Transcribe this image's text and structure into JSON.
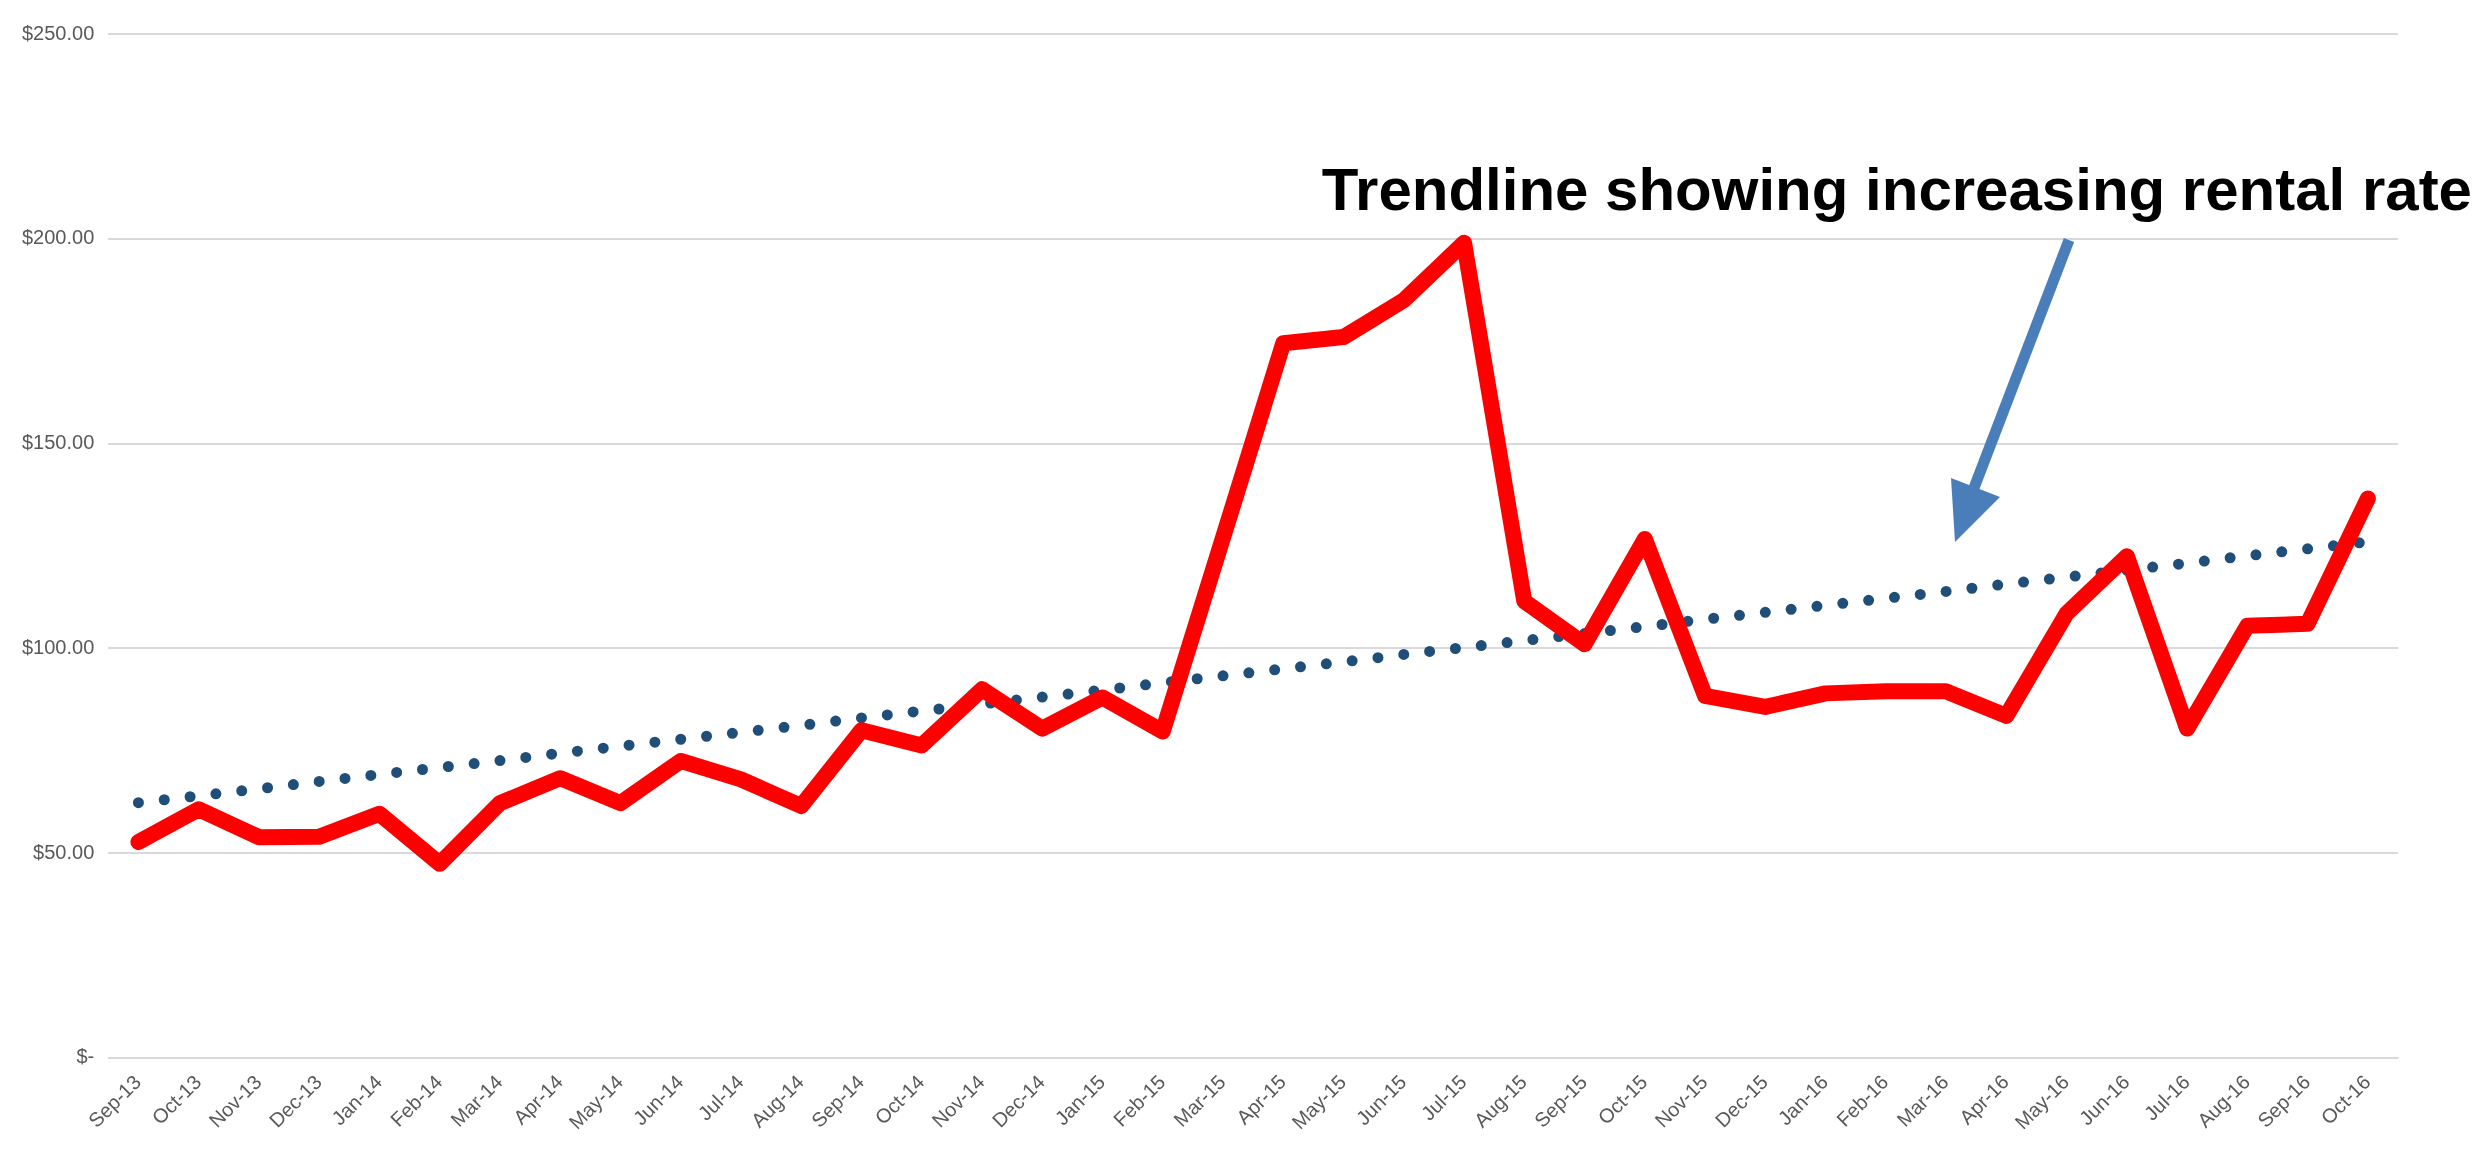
{
  "chart_data": {
    "type": "line",
    "categories": [
      "Sep-13",
      "Oct-13",
      "Nov-13",
      "Dec-13",
      "Jan-14",
      "Feb-14",
      "Mar-14",
      "Apr-14",
      "May-14",
      "Jun-14",
      "Jul-14",
      "Aug-14",
      "Sep-14",
      "Oct-14",
      "Nov-14",
      "Dec-14",
      "Jan-15",
      "Feb-15",
      "Mar-15",
      "Apr-15",
      "May-15",
      "Jun-15",
      "Jul-15",
      "Aug-15",
      "Sep-15",
      "Oct-15",
      "Nov-15",
      "Dec-15",
      "Jan-16",
      "Feb-16",
      "Mar-16",
      "Apr-16",
      "May-16",
      "Jun-16",
      "Jul-16",
      "Aug-16",
      "Sep-16",
      "Oct-16"
    ],
    "series": [
      {
        "color": "#ff0000",
        "line_style": "solid",
        "values": [
          52.7,
          60.7,
          53.9,
          54,
          59.6,
          47.4,
          62.2,
          68.3,
          62.2,
          72.5,
          68,
          61.5,
          80,
          76.3,
          90,
          80.4,
          88,
          79.7,
          127,
          174.5,
          176,
          185,
          199,
          111.5,
          101,
          126.7,
          88.4,
          85.7,
          89,
          89.5,
          89.5,
          83.5,
          108.5,
          122.5,
          80.4,
          105.5,
          106,
          136.6
        ]
      },
      {
        "color": "#1f4e79",
        "line_style": "dotted",
        "values": [
          62.3,
          64.0,
          65.7,
          67.5,
          69.2,
          70.9,
          72.6,
          74.4,
          76.1,
          77.8,
          79.5,
          81.2,
          83.0,
          84.7,
          86.4,
          88.1,
          89.8,
          91.6,
          93.3,
          95.0,
          96.7,
          98.5,
          100.2,
          101.9,
          103.6,
          105.3,
          107.1,
          108.8,
          110.5,
          112.2,
          113.9,
          115.7,
          117.4,
          119.1,
          120.8,
          122.6,
          124.3,
          126.0
        ]
      }
    ],
    "ylim": [
      0,
      250
    ],
    "yticks": [
      {
        "value": 0,
        "label": "$-"
      },
      {
        "value": 50,
        "label": "$50.00"
      },
      {
        "value": 100,
        "label": "$100.00"
      },
      {
        "value": 150,
        "label": "$150.00"
      },
      {
        "value": 200,
        "label": "$200.00"
      },
      {
        "value": 250,
        "label": "$250.00"
      }
    ],
    "grid": "y",
    "legend": false,
    "marker": "none",
    "annotations": [
      "Trendline showing increasing rental rate"
    ]
  }
}
